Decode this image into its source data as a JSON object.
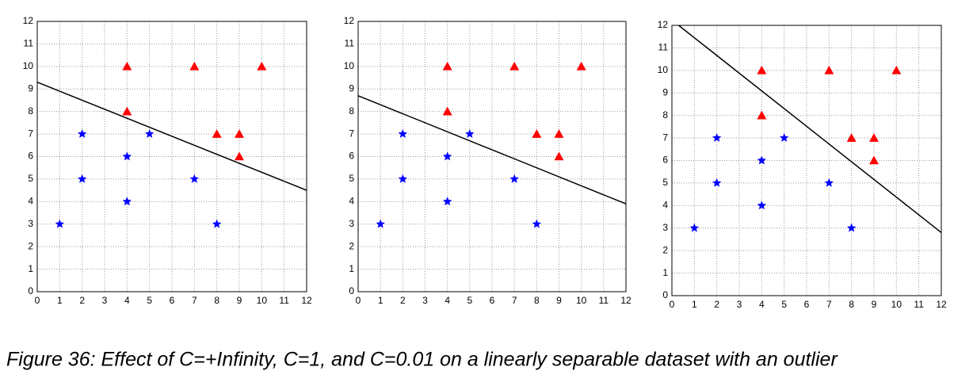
{
  "chart_data": [
    {
      "type": "scatter",
      "xlim": [
        0,
        12
      ],
      "ylim": [
        0,
        12
      ],
      "xticks": [
        0,
        1,
        2,
        3,
        4,
        5,
        6,
        7,
        8,
        9,
        10,
        11,
        12
      ],
      "yticks": [
        0,
        1,
        2,
        3,
        4,
        5,
        6,
        7,
        8,
        9,
        10,
        11,
        12
      ],
      "grid": true,
      "series": [
        {
          "marker": "star",
          "color": "#0000ff",
          "x": [
            1,
            2,
            2,
            4,
            4,
            5,
            7,
            8
          ],
          "values": [
            3,
            7,
            5,
            6,
            4,
            7,
            5,
            3
          ]
        },
        {
          "marker": "triangle",
          "color": "#ff0000",
          "x": [
            4,
            7,
            10,
            4,
            8,
            9,
            9
          ],
          "values": [
            10,
            10,
            10,
            8,
            7,
            7,
            6
          ]
        },
        {
          "marker": "line",
          "color": "#000000",
          "x": [
            0,
            12
          ],
          "values": [
            9.3,
            4.5
          ]
        }
      ]
    },
    {
      "type": "scatter",
      "xlim": [
        0,
        12
      ],
      "ylim": [
        0,
        12
      ],
      "xticks": [
        0,
        1,
        2,
        3,
        4,
        5,
        6,
        7,
        8,
        9,
        10,
        11,
        12
      ],
      "yticks": [
        0,
        1,
        2,
        3,
        4,
        5,
        6,
        7,
        8,
        9,
        10,
        11,
        12
      ],
      "grid": true,
      "series": [
        {
          "marker": "star",
          "color": "#0000ff",
          "x": [
            1,
            2,
            2,
            4,
            4,
            5,
            7,
            8
          ],
          "values": [
            3,
            7,
            5,
            6,
            4,
            7,
            5,
            3
          ]
        },
        {
          "marker": "triangle",
          "color": "#ff0000",
          "x": [
            4,
            7,
            10,
            4,
            8,
            9,
            9
          ],
          "values": [
            10,
            10,
            10,
            8,
            7,
            7,
            6
          ]
        },
        {
          "marker": "line",
          "color": "#000000",
          "x": [
            0,
            12
          ],
          "values": [
            8.7,
            3.9
          ]
        }
      ]
    },
    {
      "type": "scatter",
      "xlim": [
        0,
        12
      ],
      "ylim": [
        0,
        12
      ],
      "xticks": [
        0,
        1,
        2,
        3,
        4,
        5,
        6,
        7,
        8,
        9,
        10,
        11,
        12
      ],
      "yticks": [
        0,
        1,
        2,
        3,
        4,
        5,
        6,
        7,
        8,
        9,
        10,
        11,
        12
      ],
      "grid": true,
      "series": [
        {
          "marker": "star",
          "color": "#0000ff",
          "x": [
            1,
            2,
            2,
            4,
            4,
            5,
            7,
            8
          ],
          "values": [
            3,
            7,
            5,
            6,
            4,
            7,
            5,
            3
          ]
        },
        {
          "marker": "triangle",
          "color": "#ff0000",
          "x": [
            4,
            7,
            10,
            4,
            8,
            9,
            9
          ],
          "values": [
            10,
            10,
            10,
            8,
            7,
            7,
            6
          ]
        },
        {
          "marker": "line",
          "color": "#000000",
          "x": [
            0.3,
            12
          ],
          "values": [
            12,
            2.8
          ]
        }
      ]
    }
  ],
  "caption": "Figure 36: Effect of C=+Infinity, C=1, and C=0.01 on a linearly separable dataset with an outlier"
}
